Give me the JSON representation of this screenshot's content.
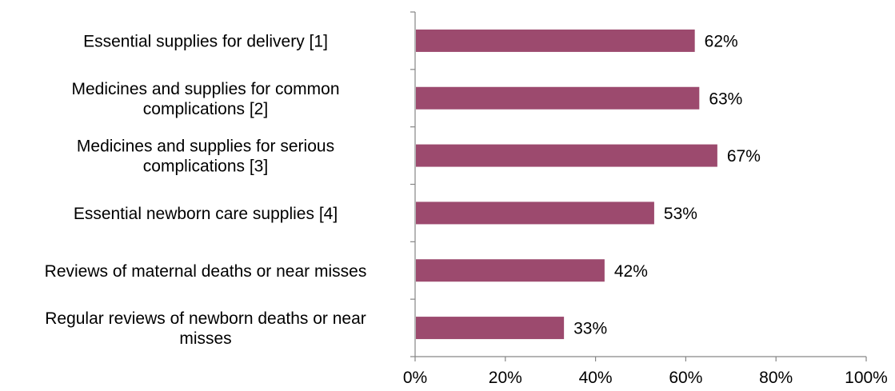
{
  "chart_data": {
    "type": "bar",
    "orientation": "horizontal",
    "categories": [
      [
        "Essential supplies for delivery [1]"
      ],
      [
        "Medicines and supplies for common",
        "complications [2]"
      ],
      [
        "Medicines and supplies for serious",
        "complications [3]"
      ],
      [
        "Essential newborn care supplies [4]"
      ],
      [
        "Reviews of maternal deaths or near misses"
      ],
      [
        "Regular reviews of newborn deaths or near",
        "misses"
      ]
    ],
    "values": [
      62,
      63,
      67,
      53,
      42,
      33
    ],
    "data_labels": [
      "62%",
      "63%",
      "67%",
      "53%",
      "42%",
      "33%"
    ],
    "xlim": [
      0,
      100
    ],
    "x_ticks": [
      0,
      20,
      40,
      60,
      80,
      100
    ],
    "x_tick_labels": [
      "0%",
      "20%",
      "40%",
      "60%",
      "80%",
      "100%"
    ],
    "bar_color": "#9c4a6e",
    "axis_color": "#868686",
    "grid": false,
    "legend": "none"
  }
}
